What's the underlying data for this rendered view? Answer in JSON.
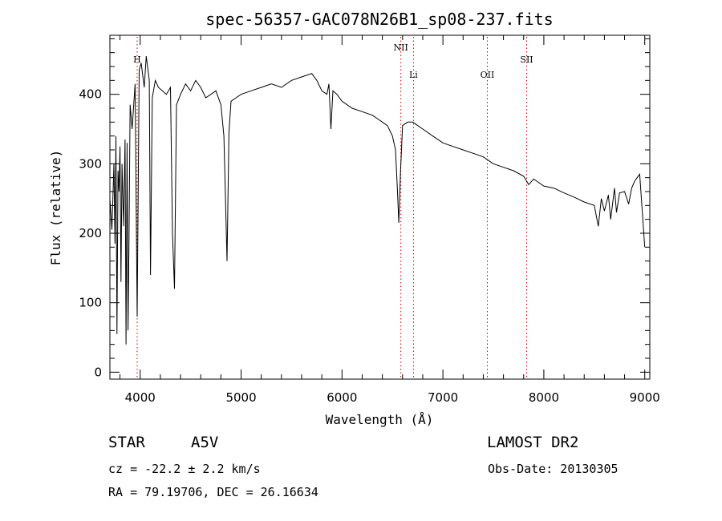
{
  "chart_data": {
    "type": "line",
    "title": "spec-56357-GAC078N26B1_sp08-237.fits",
    "xlabel": "Wavelength (Å)",
    "ylabel": "Flux (relative)",
    "xlim": [
      3700,
      9050
    ],
    "ylim": [
      -10,
      485
    ],
    "xticks": [
      4000,
      5000,
      6000,
      7000,
      8000,
      9000
    ],
    "xtick_labels": [
      "4000",
      "5000",
      "6000",
      "7000",
      "8000",
      "9000"
    ],
    "yticks": [
      0,
      100,
      200,
      300,
      400
    ],
    "ytick_labels": [
      "0",
      "100",
      "200",
      "300",
      "400"
    ],
    "grid": false,
    "series": [
      {
        "x": [
          3700,
          3720,
          3740,
          3750,
          3760,
          3770,
          3780,
          3790,
          3800,
          3810,
          3820,
          3835,
          3850,
          3860,
          3870,
          3880,
          3889,
          3900,
          3920,
          3950,
          3970,
          3990,
          4010,
          4040,
          4060,
          4090,
          4102,
          4120,
          4150,
          4180,
          4220,
          4260,
          4300,
          4320,
          4340,
          4360,
          4400,
          4450,
          4500,
          4550,
          4600,
          4650,
          4700,
          4750,
          4800,
          4830,
          4850,
          4861,
          4880,
          4900,
          4950,
          5000,
          5100,
          5200,
          5300,
          5400,
          5500,
          5600,
          5700,
          5750,
          5800,
          5850,
          5870,
          5890,
          5910,
          5950,
          6000,
          6100,
          6200,
          6300,
          6350,
          6400,
          6450,
          6500,
          6530,
          6550,
          6563,
          6580,
          6600,
          6650,
          6700,
          6800,
          6900,
          7000,
          7100,
          7200,
          7300,
          7400,
          7500,
          7600,
          7700,
          7800,
          7850,
          7900,
          8000,
          8100,
          8200,
          8300,
          8400,
          8500,
          8540,
          8570,
          8600,
          8640,
          8662,
          8700,
          8720,
          8750,
          8800,
          8840,
          8870,
          8900,
          8950,
          9000
        ],
        "y": [
          250,
          205,
          300,
          185,
          340,
          55,
          290,
          260,
          325,
          130,
          300,
          210,
          335,
          40,
          330,
          60,
          190,
          385,
          350,
          415,
          80,
          435,
          445,
          410,
          455,
          420,
          140,
          395,
          420,
          410,
          405,
          400,
          410,
          200,
          120,
          385,
          400,
          415,
          405,
          420,
          410,
          395,
          400,
          405,
          385,
          340,
          220,
          160,
          345,
          390,
          395,
          400,
          405,
          410,
          415,
          410,
          420,
          425,
          430,
          420,
          405,
          400,
          415,
          350,
          405,
          400,
          390,
          380,
          375,
          370,
          365,
          360,
          355,
          340,
          320,
          260,
          215,
          290,
          355,
          360,
          360,
          350,
          340,
          330,
          325,
          320,
          315,
          310,
          300,
          295,
          290,
          282,
          270,
          278,
          268,
          265,
          258,
          252,
          245,
          240,
          210,
          250,
          232,
          255,
          220,
          265,
          230,
          258,
          260,
          242,
          265,
          275,
          285,
          180
        ]
      }
    ],
    "line_markers": [
      {
        "label": "H",
        "x": 3970
      },
      {
        "label": "NII",
        "x": 6583
      },
      {
        "label": "Li",
        "x": 6708
      },
      {
        "label": "OII",
        "x": 7440
      },
      {
        "label": "SII",
        "x": 7830
      }
    ]
  },
  "info": {
    "object_class": "STAR",
    "subclass": "A5V",
    "survey": "LAMOST DR2",
    "cz_text": "cz = -22.2 ± 2.2 km/s",
    "obs_date_text": "Obs-Date: 20130305",
    "coords_text": "RA =  79.19706, DEC =  26.16634"
  }
}
